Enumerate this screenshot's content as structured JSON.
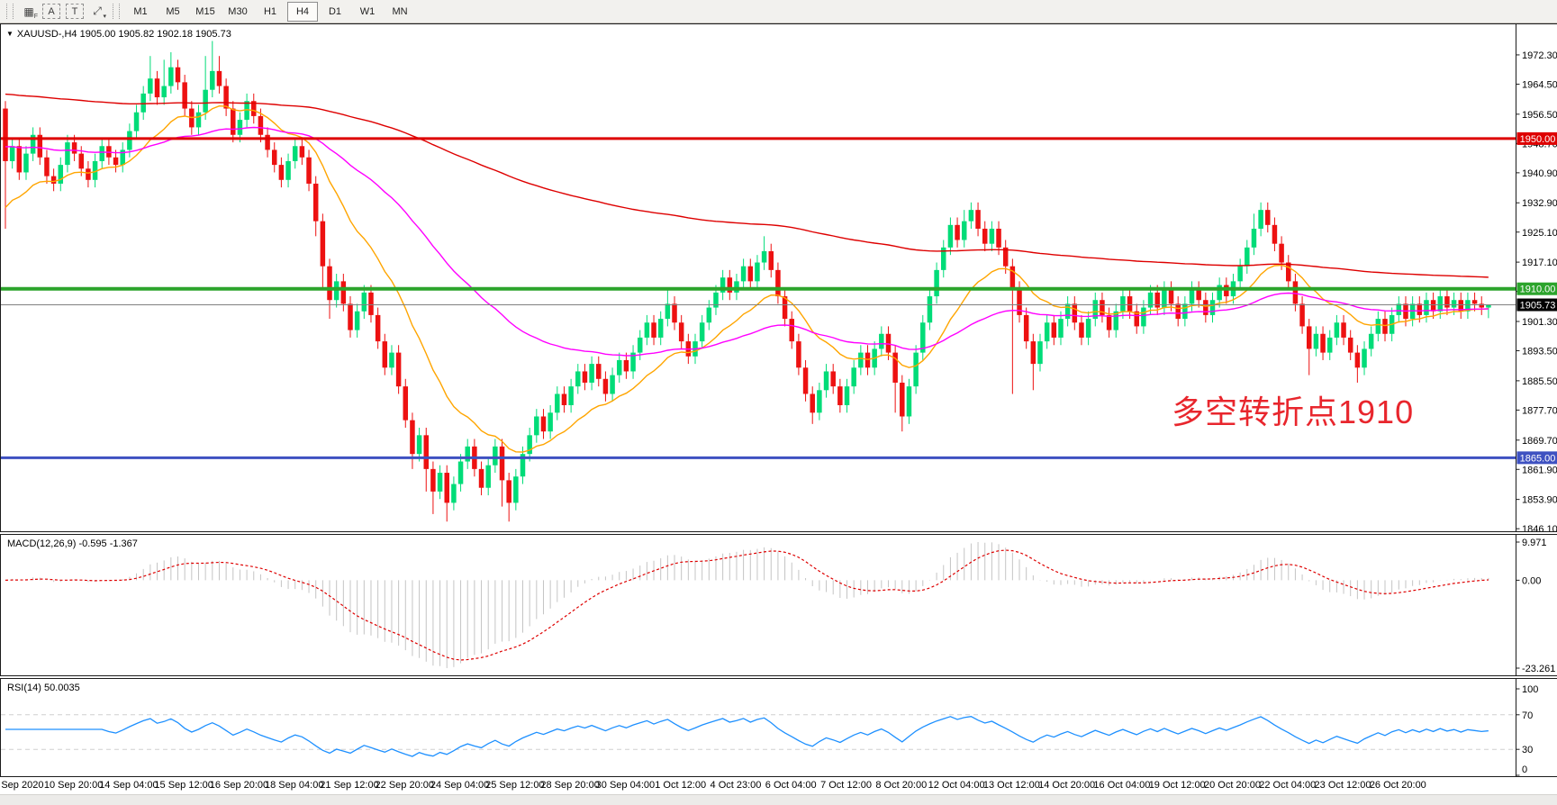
{
  "toolbar": {
    "icons": [
      {
        "name": "grid-f-icon",
        "glyph": "▦",
        "badge": "F"
      },
      {
        "name": "font-a-icon",
        "glyph": "A",
        "badge": ""
      },
      {
        "name": "text-label-icon",
        "glyph": "T",
        "badge": ""
      },
      {
        "name": "cursor-arrows-icon",
        "glyph": "⤢",
        "badge": "▾"
      }
    ],
    "timeframes": [
      {
        "label": "M1",
        "active": false
      },
      {
        "label": "M5",
        "active": false
      },
      {
        "label": "M15",
        "active": false
      },
      {
        "label": "M30",
        "active": false
      },
      {
        "label": "H1",
        "active": false
      },
      {
        "label": "H4",
        "active": true
      },
      {
        "label": "D1",
        "active": false
      },
      {
        "label": "W1",
        "active": false
      },
      {
        "label": "MN",
        "active": false
      }
    ]
  },
  "header": {
    "caret": "▼",
    "title": "XAUUSD-,H4  1905.00 1905.82 1902.18 1905.73"
  },
  "annotation": {
    "text": "多空转折点1910",
    "color": "#E8262D"
  },
  "chart_data": {
    "type": "candlestick",
    "symbol": "XAUUSD-",
    "timeframe": "H4",
    "current_ohlc": {
      "open": "1905.00",
      "high": "1905.82",
      "low": "1902.18",
      "close": "1905.73"
    },
    "first_open": 1958,
    "closes": [
      1944,
      1948,
      1941,
      1946,
      1951,
      1945,
      1940,
      1938,
      1943,
      1949,
      1946,
      1942,
      1939,
      1944,
      1948,
      1945,
      1943,
      1947,
      1952,
      1957,
      1962,
      1966,
      1961,
      1964,
      1969,
      1965,
      1958,
      1953,
      1957,
      1963,
      1968,
      1964,
      1958,
      1951,
      1955,
      1960,
      1956,
      1951,
      1947,
      1943,
      1939,
      1944,
      1948,
      1945,
      1938,
      1928,
      1916,
      1907,
      1912,
      1906,
      1899,
      1904,
      1909,
      1903,
      1896,
      1889,
      1893,
      1884,
      1875,
      1866,
      1871,
      1862,
      1856,
      1861,
      1853,
      1858,
      1864,
      1868,
      1862,
      1857,
      1863,
      1868,
      1859,
      1853,
      1860,
      1866,
      1871,
      1876,
      1872,
      1877,
      1882,
      1879,
      1884,
      1888,
      1885,
      1890,
      1886,
      1882,
      1887,
      1891,
      1888,
      1893,
      1897,
      1901,
      1897,
      1902,
      1906,
      1901,
      1896,
      1892,
      1896,
      1901,
      1905,
      1909,
      1913,
      1909,
      1912,
      1916,
      1912,
      1917,
      1920,
      1915,
      1908,
      1902,
      1896,
      1889,
      1882,
      1877,
      1883,
      1888,
      1884,
      1879,
      1884,
      1889,
      1893,
      1889,
      1894,
      1898,
      1893,
      1885,
      1876,
      1884,
      1893,
      1901,
      1908,
      1915,
      1921,
      1927,
      1923,
      1928,
      1931,
      1926,
      1922,
      1926,
      1921,
      1916,
      1910,
      1903,
      1896,
      1890,
      1896,
      1901,
      1897,
      1902,
      1906,
      1901,
      1897,
      1902,
      1907,
      1903,
      1899,
      1904,
      1908,
      1904,
      1900,
      1905,
      1909,
      1905,
      1910,
      1906,
      1902,
      1906,
      1910,
      1907,
      1903,
      1907,
      1911,
      1908,
      1912,
      1916,
      1921,
      1926,
      1931,
      1927,
      1922,
      1917,
      1912,
      1906,
      1900,
      1894,
      1898,
      1893,
      1897,
      1901,
      1897,
      1893,
      1889,
      1894,
      1898,
      1902,
      1898,
      1903,
      1906,
      1902,
      1906,
      1903,
      1907,
      1904,
      1908,
      1905,
      1907,
      1904,
      1907,
      1906,
      1905,
      1905.73
    ],
    "default_wick": 2,
    "wick_overrides": {
      "0": [
        1960,
        1926
      ],
      "21": [
        1972,
        null
      ],
      "23": [
        1971,
        null
      ],
      "24": [
        1973,
        null
      ],
      "25": [
        1971,
        null
      ],
      "29": [
        1972,
        null
      ],
      "30": [
        1976,
        null
      ],
      "31": [
        1972,
        null
      ],
      "45": [
        null,
        1924
      ],
      "46": [
        null,
        1910
      ],
      "47": [
        null,
        1902
      ],
      "59": [
        null,
        1862
      ],
      "61": [
        null,
        1856
      ],
      "62": [
        null,
        1850
      ],
      "64": [
        null,
        1848
      ],
      "72": [
        null,
        1852
      ],
      "73": [
        null,
        1848
      ],
      "96": [
        1910,
        null
      ],
      "110": [
        1924,
        null
      ],
      "117": [
        null,
        1874
      ],
      "129": [
        null,
        1877
      ],
      "130": [
        null,
        1872
      ],
      "139": [
        1931,
        null
      ],
      "140": [
        1933,
        null
      ],
      "146": [
        null,
        1882
      ],
      "149": [
        null,
        1883
      ],
      "181": [
        1930,
        null
      ],
      "182": [
        1933,
        null
      ],
      "189": [
        null,
        1887
      ],
      "196": [
        null,
        1885
      ],
      "215": [
        1905.82,
        1902.18
      ]
    },
    "candle_up_color": "#00DC78",
    "candle_down_color": "#ED1111",
    "price_range": {
      "top": 1980.2,
      "bottom": 1845.9
    },
    "y_ticks": [
      1972.3,
      1964.5,
      1956.5,
      1948.7,
      1940.9,
      1932.9,
      1925.1,
      1917.1,
      1909.3,
      1901.3,
      1893.5,
      1885.5,
      1877.7,
      1869.7,
      1861.9,
      1853.9,
      1846.1
    ],
    "x_labels": [
      "9 Sep 2020",
      "10 Sep 20:00",
      "14 Sep 04:00",
      "15 Sep 12:00",
      "16 Sep 20:00",
      "18 Sep 04:00",
      "21 Sep 12:00",
      "22 Sep 20:00",
      "24 Sep 04:00",
      "25 Sep 12:00",
      "28 Sep 20:00",
      "30 Sep 04:00",
      "1 Oct 12:00",
      "4 Oct 23:00",
      "6 Oct 04:00",
      "7 Oct 12:00",
      "8 Oct 20:00",
      "12 Oct 04:00",
      "13 Oct 12:00",
      "14 Oct 20:00",
      "16 Oct 04:00",
      "19 Oct 12:00",
      "20 Oct 20:00",
      "22 Oct 04:00",
      "23 Oct 12:00",
      "26 Oct 20:00"
    ],
    "label_start_bar": 2,
    "label_every_bars": 8,
    "moving_averages": [
      {
        "name": "ma-fast-orange",
        "period": 16,
        "seed": 1930,
        "color": "#FFA500"
      },
      {
        "name": "ma-mid-magenta",
        "period": 55,
        "seed": 1948,
        "color": "#FF00FF"
      },
      {
        "name": "ma-slow-red",
        "period": 220,
        "seed": 1962,
        "color": "#DE0000"
      }
    ],
    "horizontal_lines": [
      {
        "price": 1950,
        "color": "#DE0000",
        "width": 3,
        "label": "1950.00"
      },
      {
        "price": 1910,
        "color": "#2CA42C",
        "width": 4,
        "label": "1910.00"
      },
      {
        "price": 1865,
        "color": "#3E51C1",
        "width": 3,
        "label": "1865.00"
      },
      {
        "price": 1905.73,
        "color": "#808080",
        "width": 1,
        "label": "1905.73",
        "badge": "#000000"
      }
    ],
    "indicators": [
      {
        "id": "macd",
        "label": "MACD(12,26,9) -0.595 -1.367",
        "params": [
          12,
          26,
          9
        ],
        "values_text": [
          "-0.595",
          "-1.367"
        ],
        "axis_labels": [
          "9.971",
          "0.00",
          "-23.261"
        ],
        "histogram_color": "#C4C4C4",
        "signal_color": "#DE0000"
      },
      {
        "id": "rsi",
        "label": "RSI(14) 50.0035",
        "period": 14,
        "value_text": "50.0035",
        "axis_labels": [
          "100",
          "70",
          "30",
          "0"
        ],
        "levels": [
          70,
          30
        ],
        "line_color": "#1E90FF",
        "level_color": "#CFCFCF"
      }
    ]
  }
}
